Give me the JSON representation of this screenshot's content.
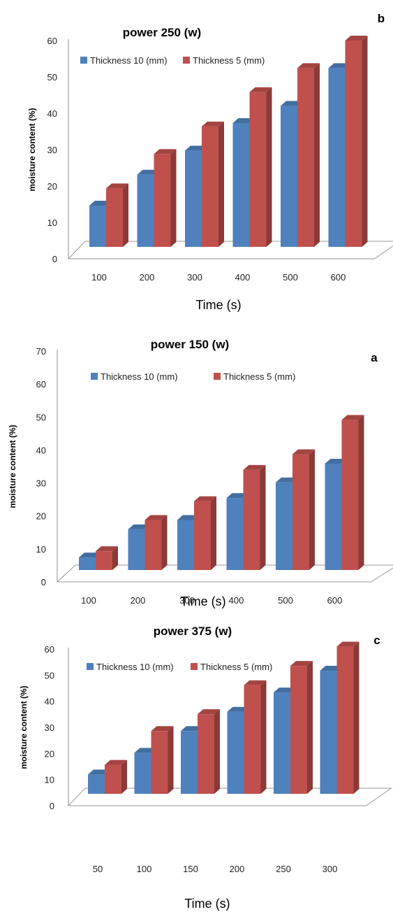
{
  "chart_data": [
    {
      "type": "bar",
      "panel_label": "b",
      "title": "power 250 (w)",
      "xlabel": "Time (s)",
      "ylabel": "moisture content (%)",
      "ylim": [
        0,
        60
      ],
      "yticks": [
        "0",
        "10",
        "20",
        "30",
        "40",
        "50",
        "60"
      ],
      "categories": [
        "100",
        "200",
        "300",
        "400",
        "500",
        "600"
      ],
      "legend_position": "top",
      "series": [
        {
          "name": "Thickness 10 (mm)",
          "color": "#4f81bd",
          "values": [
            12,
            21,
            28,
            36,
            41,
            52
          ]
        },
        {
          "name": "Thickness 5 (mm)",
          "color": "#c0504d",
          "values": [
            17,
            27,
            35,
            45,
            52,
            60
          ]
        }
      ]
    },
    {
      "type": "bar",
      "panel_label": "a",
      "title": "power 150 (w)",
      "xlabel": "Time (s)",
      "ylabel": "moisture content (%)",
      "ylim": [
        0,
        70
      ],
      "yticks": [
        "0",
        "10",
        "20",
        "30",
        "40",
        "50",
        "60",
        "70"
      ],
      "categories": [
        "100",
        "200",
        "300",
        "400",
        "500",
        "600"
      ],
      "legend_position": "top",
      "series": [
        {
          "name": "Thickness 10 (mm)",
          "color": "#4f81bd",
          "values": [
            4,
            13,
            16,
            23,
            28,
            34
          ]
        },
        {
          "name": "Thickness 5 (mm)",
          "color": "#c0504d",
          "values": [
            6,
            16,
            22,
            32,
            37,
            48
          ]
        }
      ]
    },
    {
      "type": "bar",
      "panel_label": "c",
      "title": "power 375 (w)",
      "xlabel": "Time (s)",
      "ylabel": "moisture content (%)",
      "ylim": [
        0,
        60
      ],
      "yticks": [
        "0",
        "10",
        "20",
        "30",
        "40",
        "50",
        "60"
      ],
      "categories": [
        "50",
        "100",
        "150",
        "200",
        "250",
        "300"
      ],
      "legend_position": "top",
      "series": [
        {
          "name": "Thickness 10 (mm)",
          "color": "#4f81bd",
          "values": [
            8,
            17,
            26,
            34,
            42,
            51
          ]
        },
        {
          "name": "Thickness 5 (mm)",
          "color": "#c0504d",
          "values": [
            12,
            26,
            33,
            45,
            53,
            61
          ]
        }
      ]
    }
  ]
}
